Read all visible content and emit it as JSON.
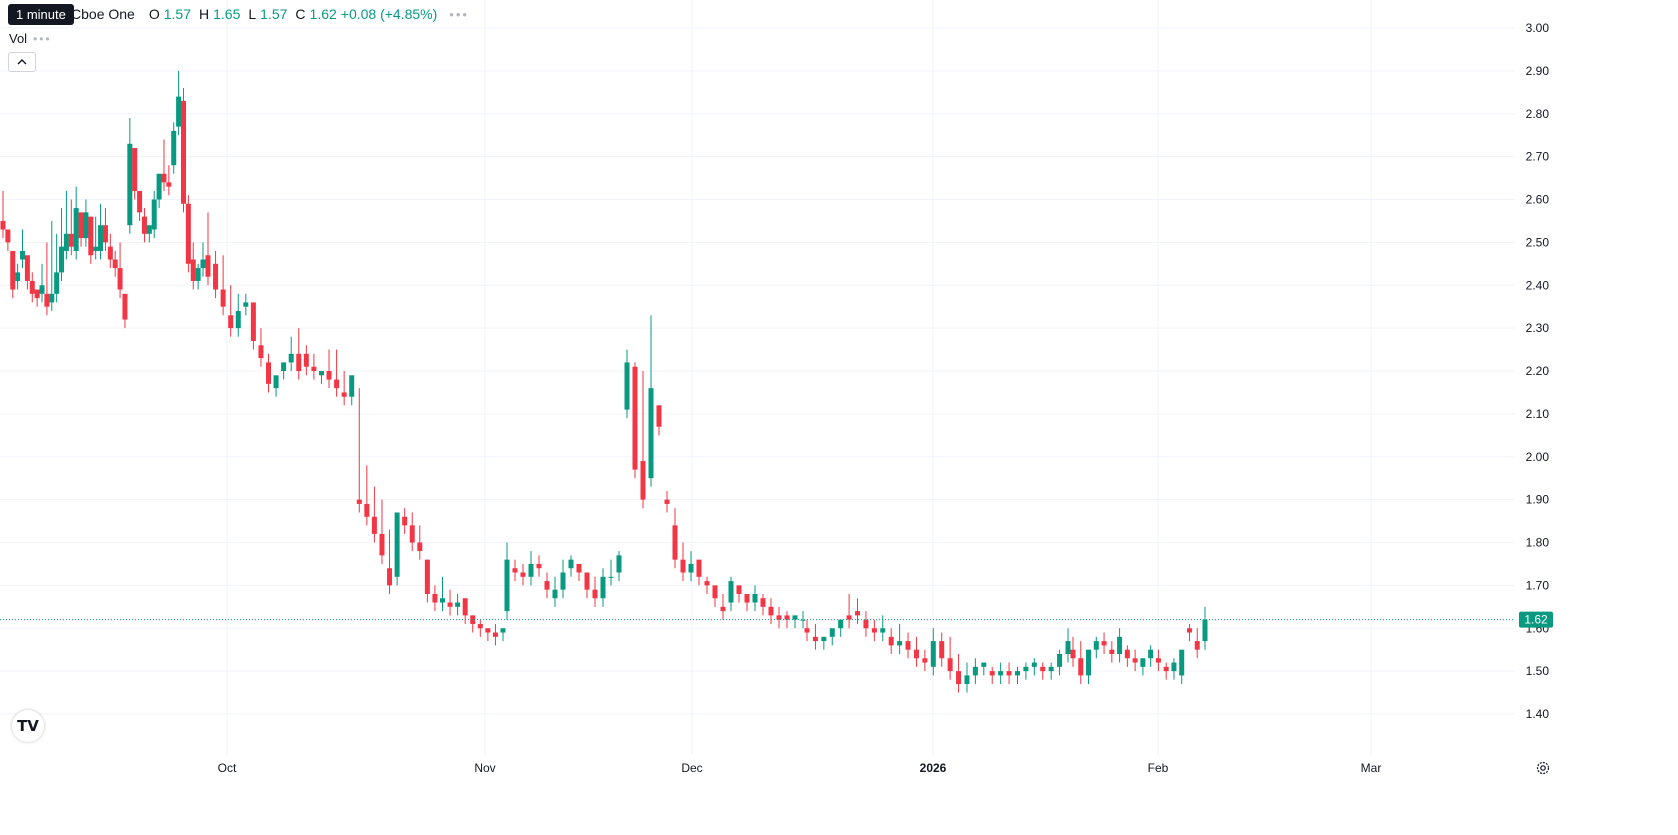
{
  "legend": {
    "symbol": "Inc. · 4h · Cboe One",
    "open_label": "O",
    "open": "1.57",
    "high_label": "H",
    "high": "1.65",
    "low_label": "L",
    "low": "1.57",
    "close_label": "C",
    "close": "1.62",
    "change": "+0.08 (+4.85%)"
  },
  "tooltip": "1 minute",
  "volume_label": "Vol",
  "logo_text": "TV",
  "colors": {
    "up": "#089981",
    "down": "#f23645",
    "grid": "#f0f3fa",
    "axis_text": "#131722"
  },
  "chart_data": {
    "type": "candlestick",
    "title": "",
    "interval": "4h",
    "y_axis": {
      "ticks": [
        "3.00",
        "2.90",
        "2.80",
        "2.70",
        "2.60",
        "2.50",
        "2.40",
        "2.30",
        "2.20",
        "2.10",
        "2.00",
        "1.90",
        "1.80",
        "1.70",
        "1.60",
        "1.50",
        "1.40"
      ],
      "ylim": [
        1.32,
        3.01
      ],
      "position": "right"
    },
    "x_axis": {
      "ticks": [
        "Oct",
        "Nov",
        "Dec",
        "2026",
        "Feb",
        "Mar"
      ],
      "bold_ticks": [
        "2026"
      ]
    },
    "grid": true,
    "last_price": "1.62",
    "segments": [
      {
        "start": 0,
        "end": 200,
        "n": 42,
        "h": [
          2.62,
          2.52,
          2.46,
          2.45,
          2.53,
          2.45,
          2.43,
          2.38,
          2.45,
          2.5,
          2.55,
          2.52,
          2.58,
          2.62,
          2.6,
          2.63,
          2.54,
          2.6,
          2.5,
          2.56,
          2.59,
          2.58,
          2.52,
          2.48,
          2.5,
          2.38,
          2.79,
          2.64,
          2.62,
          2.58,
          2.53,
          2.62,
          2.66,
          2.74,
          2.68,
          2.78,
          2.9,
          2.86,
          2.61,
          2.5,
          2.45,
          2.5
        ]
      },
      {
        "start": 205,
        "end": 500,
        "n": 40,
        "h": [
          2.57,
          2.48,
          2.47,
          2.4,
          2.38,
          2.38,
          2.35,
          2.3,
          2.24,
          2.18,
          2.22,
          2.28,
          2.3,
          2.26,
          2.24,
          2.2,
          2.25,
          2.25,
          2.2,
          2.17,
          2.16,
          1.98,
          1.93,
          1.9,
          1.83,
          1.78,
          1.88,
          1.87,
          1.84,
          1.76,
          1.7,
          1.72,
          1.69,
          1.68,
          1.65,
          1.63,
          1.62,
          1.6,
          1.61,
          1.59
        ]
      },
      {
        "start": 504,
        "end": 800,
        "n": 38,
        "h": [
          1.8,
          1.76,
          1.75,
          1.78,
          1.77,
          1.73,
          1.72,
          1.76,
          1.77,
          1.75,
          1.73,
          1.72,
          1.74,
          1.76,
          1.78,
          2.25,
          2.22,
          2.2,
          2.33,
          2.12,
          1.92,
          1.88,
          1.8,
          1.78,
          1.74,
          1.72,
          1.7,
          1.68,
          1.72,
          1.7,
          1.66,
          1.7,
          1.68,
          1.67,
          1.65,
          1.64,
          1.63,
          1.64
        ]
      },
      {
        "start": 804,
        "end": 1065,
        "n": 32,
        "h": [
          1.62,
          1.61,
          1.58,
          1.58,
          1.62,
          1.68,
          1.67,
          1.64,
          1.62,
          1.63,
          1.6,
          1.61,
          1.59,
          1.58,
          1.55,
          1.6,
          1.59,
          1.58,
          1.54,
          1.52,
          1.53,
          1.52,
          1.51,
          1.52,
          1.52,
          1.51,
          1.52,
          1.53,
          1.52,
          1.52,
          1.55,
          1.6
        ]
      },
      {
        "start": 1070,
        "end": 1202,
        "n": 18,
        "h": [
          1.58,
          1.57,
          1.55,
          1.58,
          1.59,
          1.57,
          1.6,
          1.56,
          1.55,
          1.53,
          1.56,
          1.55,
          1.52,
          1.53,
          1.5,
          1.61,
          1.6,
          1.65
        ]
      }
    ],
    "series": [
      {
        "o": 2.55,
        "c": 2.53
      },
      {
        "o": 2.53,
        "c": 2.5
      },
      {
        "o": 2.48,
        "c": 2.39
      },
      {
        "o": 2.41,
        "c": 2.43
      },
      {
        "o": 2.46,
        "c": 2.48
      },
      {
        "o": 2.47,
        "c": 2.41
      },
      {
        "o": 2.41,
        "c": 2.38
      },
      {
        "o": 2.39,
        "c": 2.37
      },
      {
        "o": 2.38,
        "c": 2.4
      },
      {
        "o": 2.38,
        "c": 2.35
      },
      {
        "o": 2.36,
        "c": 2.38
      },
      {
        "o": 2.38,
        "c": 2.43
      },
      {
        "o": 2.43,
        "c": 2.49
      },
      {
        "o": 2.48,
        "c": 2.52
      },
      {
        "o": 2.52,
        "c": 2.49
      },
      {
        "o": 2.48,
        "c": 2.58
      },
      {
        "o": 2.57,
        "c": 2.51
      },
      {
        "o": 2.51,
        "c": 2.57
      },
      {
        "o": 2.56,
        "c": 2.47
      },
      {
        "o": 2.48,
        "c": 2.49
      },
      {
        "o": 2.48,
        "c": 2.54
      },
      {
        "o": 2.54,
        "c": 2.5
      },
      {
        "o": 2.49,
        "c": 2.46
      },
      {
        "o": 2.46,
        "c": 2.44
      },
      {
        "o": 2.44,
        "c": 2.39
      },
      {
        "o": 2.38,
        "c": 2.32
      },
      {
        "o": 2.54,
        "c": 2.73
      },
      {
        "o": 2.72,
        "c": 2.62
      },
      {
        "o": 2.62,
        "c": 2.57
      },
      {
        "o": 2.56,
        "c": 2.52
      },
      {
        "o": 2.52,
        "c": 2.54
      },
      {
        "o": 2.53,
        "c": 2.6
      },
      {
        "o": 2.6,
        "c": 2.66
      },
      {
        "o": 2.66,
        "c": 2.64
      },
      {
        "o": 2.64,
        "c": 2.63
      },
      {
        "o": 2.68,
        "c": 2.76
      },
      {
        "o": 2.77,
        "c": 2.84
      },
      {
        "o": 2.83,
        "c": 2.59
      },
      {
        "o": 2.59,
        "c": 2.45
      },
      {
        "o": 2.46,
        "c": 2.41
      },
      {
        "o": 2.41,
        "c": 2.44
      },
      {
        "o": 2.44,
        "c": 2.46
      },
      {
        "o": 2.47,
        "c": 2.42
      },
      {
        "o": 2.45,
        "c": 2.39
      },
      {
        "o": 2.39,
        "c": 2.35
      },
      {
        "o": 2.33,
        "c": 2.3
      },
      {
        "o": 2.3,
        "c": 2.34
      },
      {
        "o": 2.35,
        "c": 2.36
      },
      {
        "o": 2.36,
        "c": 2.27
      },
      {
        "o": 2.26,
        "c": 2.23
      },
      {
        "o": 2.22,
        "c": 2.17
      },
      {
        "o": 2.16,
        "c": 2.19
      },
      {
        "o": 2.2,
        "c": 2.22
      },
      {
        "o": 2.22,
        "c": 2.24
      },
      {
        "o": 2.24,
        "c": 2.2
      },
      {
        "o": 2.24,
        "c": 2.21
      },
      {
        "o": 2.21,
        "c": 2.2
      },
      {
        "o": 2.19,
        "c": 2.2
      },
      {
        "o": 2.2,
        "c": 2.18
      },
      {
        "o": 2.18,
        "c": 2.16
      },
      {
        "o": 2.15,
        "c": 2.14
      },
      {
        "o": 2.14,
        "c": 2.19
      },
      {
        "o": 1.9,
        "c": 1.89
      },
      {
        "o": 1.89,
        "c": 1.86
      },
      {
        "o": 1.86,
        "c": 1.82
      },
      {
        "o": 1.82,
        "c": 1.77
      },
      {
        "o": 1.74,
        "c": 1.7
      },
      {
        "o": 1.72,
        "c": 1.87
      },
      {
        "o": 1.86,
        "c": 1.84
      },
      {
        "o": 1.84,
        "c": 1.8
      },
      {
        "o": 1.8,
        "c": 1.78
      },
      {
        "o": 1.76,
        "c": 1.68
      },
      {
        "o": 1.68,
        "c": 1.66
      },
      {
        "o": 1.66,
        "c": 1.67
      },
      {
        "o": 1.66,
        "c": 1.65
      },
      {
        "o": 1.65,
        "c": 1.66
      },
      {
        "o": 1.67,
        "c": 1.63
      },
      {
        "o": 1.63,
        "c": 1.61
      },
      {
        "o": 1.61,
        "c": 1.6
      },
      {
        "o": 1.6,
        "c": 1.59
      },
      {
        "o": 1.59,
        "c": 1.58
      },
      {
        "o": 1.59,
        "c": 1.6
      },
      {
        "o": 1.64,
        "c": 1.76
      },
      {
        "o": 1.74,
        "c": 1.73
      },
      {
        "o": 1.73,
        "c": 1.72
      },
      {
        "o": 1.72,
        "c": 1.75
      },
      {
        "o": 1.75,
        "c": 1.74
      },
      {
        "o": 1.71,
        "c": 1.69
      },
      {
        "o": 1.67,
        "c": 1.69
      },
      {
        "o": 1.69,
        "c": 1.73
      },
      {
        "o": 1.74,
        "c": 1.76
      },
      {
        "o": 1.75,
        "c": 1.73
      },
      {
        "o": 1.73,
        "c": 1.69
      },
      {
        "o": 1.69,
        "c": 1.67
      },
      {
        "o": 1.67,
        "c": 1.72
      },
      {
        "o": 1.72,
        "c": 1.72
      },
      {
        "o": 1.73,
        "c": 1.77
      },
      {
        "o": 2.11,
        "c": 2.22
      },
      {
        "o": 2.21,
        "c": 1.97
      },
      {
        "o": 1.99,
        "c": 1.9
      },
      {
        "o": 1.95,
        "c": 2.16
      },
      {
        "o": 2.12,
        "c": 2.07
      },
      {
        "o": 1.9,
        "c": 1.89
      },
      {
        "o": 1.84,
        "c": 1.76
      },
      {
        "o": 1.76,
        "c": 1.73
      },
      {
        "o": 1.73,
        "c": 1.75
      },
      {
        "o": 1.76,
        "c": 1.72
      },
      {
        "o": 1.71,
        "c": 1.7
      },
      {
        "o": 1.7,
        "c": 1.67
      },
      {
        "o": 1.65,
        "c": 1.64
      },
      {
        "o": 1.66,
        "c": 1.71
      },
      {
        "o": 1.7,
        "c": 1.68
      },
      {
        "o": 1.68,
        "c": 1.66
      },
      {
        "o": 1.66,
        "c": 1.68
      },
      {
        "o": 1.67,
        "c": 1.65
      },
      {
        "o": 1.65,
        "c": 1.63
      },
      {
        "o": 1.63,
        "c": 1.62
      },
      {
        "o": 1.63,
        "c": 1.62
      },
      {
        "o": 1.62,
        "c": 1.63
      },
      {
        "o": 1.62,
        "c": 1.62
      },
      {
        "o": 1.6,
        "c": 1.59
      },
      {
        "o": 1.58,
        "c": 1.57
      },
      {
        "o": 1.57,
        "c": 1.58
      },
      {
        "o": 1.58,
        "c": 1.6
      },
      {
        "o": 1.6,
        "c": 1.62
      },
      {
        "o": 1.63,
        "c": 1.62
      },
      {
        "o": 1.64,
        "c": 1.63
      },
      {
        "o": 1.62,
        "c": 1.6
      },
      {
        "o": 1.6,
        "c": 1.59
      },
      {
        "o": 1.59,
        "c": 1.6
      },
      {
        "o": 1.58,
        "c": 1.56
      },
      {
        "o": 1.56,
        "c": 1.57
      },
      {
        "o": 1.57,
        "c": 1.55
      },
      {
        "o": 1.55,
        "c": 1.53
      },
      {
        "o": 1.53,
        "c": 1.52
      },
      {
        "o": 1.51,
        "c": 1.57
      },
      {
        "o": 1.57,
        "c": 1.53
      },
      {
        "o": 1.53,
        "c": 1.5
      },
      {
        "o": 1.5,
        "c": 1.47
      },
      {
        "o": 1.47,
        "c": 1.49
      },
      {
        "o": 1.49,
        "c": 1.51
      },
      {
        "o": 1.51,
        "c": 1.52
      },
      {
        "o": 1.5,
        "c": 1.49
      },
      {
        "o": 1.49,
        "c": 1.5
      },
      {
        "o": 1.5,
        "c": 1.49
      },
      {
        "o": 1.49,
        "c": 1.5
      },
      {
        "o": 1.5,
        "c": 1.51
      },
      {
        "o": 1.51,
        "c": 1.52
      },
      {
        "o": 1.51,
        "c": 1.5
      },
      {
        "o": 1.5,
        "c": 1.51
      },
      {
        "o": 1.51,
        "c": 1.54
      },
      {
        "o": 1.54,
        "c": 1.57
      },
      {
        "o": 1.55,
        "c": 1.53
      },
      {
        "o": 1.53,
        "c": 1.49
      },
      {
        "o": 1.49,
        "c": 1.55
      },
      {
        "o": 1.55,
        "c": 1.57
      },
      {
        "o": 1.57,
        "c": 1.56
      },
      {
        "o": 1.55,
        "c": 1.54
      },
      {
        "o": 1.54,
        "c": 1.58
      },
      {
        "o": 1.55,
        "c": 1.53
      },
      {
        "o": 1.53,
        "c": 1.52
      },
      {
        "o": 1.51,
        "c": 1.53
      },
      {
        "o": 1.53,
        "c": 1.55
      },
      {
        "o": 1.53,
        "c": 1.52
      },
      {
        "o": 1.51,
        "c": 1.5
      },
      {
        "o": 1.5,
        "c": 1.52
      },
      {
        "o": 1.49,
        "c": 1.55
      },
      {
        "o": 1.6,
        "c": 1.59
      },
      {
        "o": 1.57,
        "c": 1.55
      },
      {
        "o": 1.57,
        "c": 1.62
      }
    ]
  }
}
